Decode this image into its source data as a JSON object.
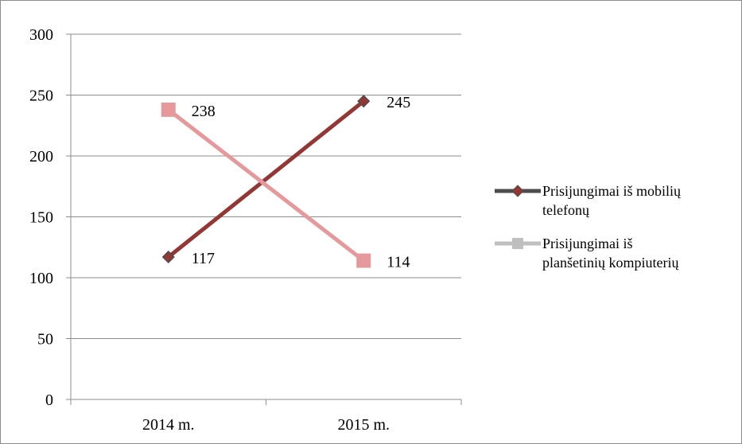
{
  "chart_data": {
    "type": "line",
    "title": "",
    "xlabel": "",
    "ylabel": "",
    "categories": [
      "2014 m.",
      "2015 m."
    ],
    "ylim": [
      0,
      300
    ],
    "yticks": [
      0,
      50,
      100,
      150,
      200,
      250,
      300
    ],
    "grid": true,
    "legend_position": "right",
    "series": [
      {
        "name": "Prisijungimai iš mobilių telefonų",
        "values": [
          117,
          245
        ],
        "color": "#943634",
        "marker": "diamond"
      },
      {
        "name": "Prisijungimai iš planšetinių kompiuterių",
        "values": [
          238,
          114
        ],
        "color": "#e6999a",
        "marker": "square"
      }
    ],
    "data_labels": [
      [
        "117",
        "245"
      ],
      [
        "238",
        "114"
      ]
    ]
  },
  "legend": {
    "entries": [
      {
        "line1": "Prisijungimai iš mobilių",
        "line2": "telefonų",
        "swatch_color": "#4d4d4d",
        "marker": "diamond"
      },
      {
        "line1": "Prisijungimai iš",
        "line2": "planšetinių kompiuterių",
        "swatch_color": "#bfbfbf",
        "marker": "square"
      }
    ]
  }
}
